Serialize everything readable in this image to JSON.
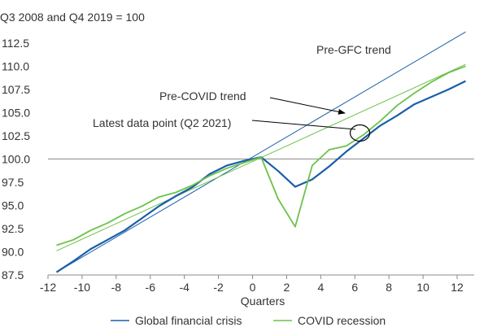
{
  "chart_data": {
    "type": "line",
    "subtitle": "Q3 2008 and Q4 2019 = 100",
    "xlabel": "Quarters",
    "ylabel": "",
    "xlim": [
      -12,
      13
    ],
    "ylim": [
      87.5,
      113.8
    ],
    "xticks": [
      -12,
      -10,
      -8,
      -6,
      -4,
      -2,
      0,
      2,
      4,
      6,
      8,
      10,
      12
    ],
    "xtick_labels": [
      "-12",
      "-10",
      "-8",
      "-6",
      "-4",
      "-2",
      "0",
      "2",
      "4",
      "6",
      "8",
      "10",
      "12"
    ],
    "yticks": [
      87.5,
      90,
      92.5,
      95,
      97.5,
      100,
      102.5,
      105,
      107.5,
      110,
      112.5
    ],
    "ytick_labels": [
      "87.5",
      "90.0",
      "92.5",
      "95.0",
      "97.5",
      "100.0",
      "102.5",
      "105.0",
      "107.5",
      "110.0",
      "112.5"
    ],
    "reference_line_y": 100,
    "grid": false,
    "legend_position": "bottom",
    "colors": {
      "gfc": "#1a5ea8",
      "covid": "#6cc24a",
      "gfc_trend": "#1a5ea8",
      "covid_trend": "#6cc24a",
      "axis": "#888888",
      "text": "#333333",
      "annotation": "#000000"
    },
    "series": [
      {
        "name": "Global financial crisis",
        "key": "gfc",
        "x": [
          -11.5,
          -10.5,
          -9.5,
          -8.5,
          -7.5,
          -6.5,
          -5.5,
          -4.5,
          -3.5,
          -2.5,
          -1.5,
          -0.5,
          0.5,
          1.5,
          2.5,
          3.5,
          4.5,
          5.5,
          6.5,
          7.5,
          8.5,
          9.5,
          10.5,
          11.5,
          12.5
        ],
        "y": [
          87.8,
          89.0,
          90.3,
          91.3,
          92.3,
          93.6,
          94.9,
          96.0,
          97.0,
          98.4,
          99.3,
          99.8,
          100.2,
          98.7,
          97.0,
          97.8,
          99.2,
          100.8,
          102.2,
          103.6,
          104.7,
          105.9,
          106.7,
          107.5,
          108.4
        ]
      },
      {
        "name": "COVID recession",
        "key": "covid",
        "x": [
          -11.5,
          -10.5,
          -9.5,
          -8.5,
          -7.5,
          -6.5,
          -5.5,
          -4.5,
          -3.5,
          -2.5,
          -1.5,
          -0.5,
          0.5,
          1.5,
          2.5,
          3.5,
          4.5,
          5.5,
          6.5,
          7.5,
          8.5,
          9.5,
          10.5,
          11.5,
          12.5
        ],
        "y": [
          90.7,
          91.3,
          92.3,
          93.1,
          94.1,
          94.9,
          95.9,
          96.4,
          97.2,
          98.2,
          99.0,
          99.6,
          100.2,
          95.7,
          92.7,
          99.3,
          101.0,
          101.4,
          102.6,
          104.1,
          105.8,
          107.1,
          108.3,
          109.3,
          110.0
        ]
      }
    ],
    "trend_lines": [
      {
        "key": "gfc_trend",
        "label": "Pre-GFC trend",
        "x": [
          -11.5,
          12.5
        ],
        "y": [
          87.8,
          113.7
        ]
      },
      {
        "key": "covid_trend",
        "label": "Pre-COVID trend",
        "x": [
          -11.5,
          12.5
        ],
        "y": [
          90.1,
          110.2
        ]
      }
    ],
    "annotations": [
      {
        "key": "pre_gfc_label",
        "text": "Pre-GFC trend"
      },
      {
        "key": "pre_covid_label",
        "text": "Pre-COVID trend"
      },
      {
        "key": "latest_point_label",
        "text": "Latest data point (Q2 2021)",
        "target": {
          "x": 6.3,
          "y": 102.8
        }
      }
    ],
    "legend": [
      {
        "key": "gfc",
        "label": "Global financial crisis"
      },
      {
        "key": "covid",
        "label": "COVID recession"
      }
    ]
  }
}
